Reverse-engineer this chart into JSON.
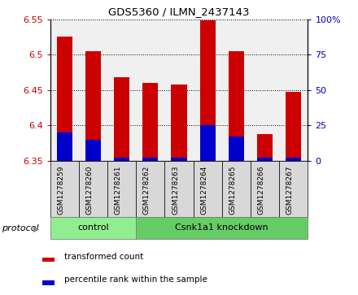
{
  "title": "GDS5360 / ILMN_2437143",
  "samples": [
    "GSM1278259",
    "GSM1278260",
    "GSM1278261",
    "GSM1278262",
    "GSM1278263",
    "GSM1278264",
    "GSM1278265",
    "GSM1278266",
    "GSM1278267"
  ],
  "transformed_counts": [
    6.525,
    6.505,
    6.468,
    6.46,
    6.458,
    6.548,
    6.505,
    6.388,
    6.447
  ],
  "percentile_ranks": [
    20,
    15,
    2,
    2,
    2,
    25,
    17,
    2,
    2
  ],
  "bar_base": 6.35,
  "ylim_left": [
    6.35,
    6.55
  ],
  "ylim_right": [
    0,
    100
  ],
  "yticks_left": [
    6.35,
    6.4,
    6.45,
    6.5,
    6.55
  ],
  "yticks_right": [
    0,
    25,
    50,
    75,
    100
  ],
  "ytick_labels_right": [
    "0",
    "25",
    "50",
    "75",
    "100%"
  ],
  "bar_color": "#cc0000",
  "percentile_color": "#0000cc",
  "protocol_groups": [
    {
      "label": "control",
      "start": 0,
      "end": 3,
      "color": "#90ee90"
    },
    {
      "label": "Csnk1a1 knockdown",
      "start": 3,
      "end": 9,
      "color": "#66cc66"
    }
  ],
  "xlabel_protocol": "protocol",
  "legend_items": [
    {
      "label": "transformed count",
      "color": "#cc0000"
    },
    {
      "label": "percentile rank within the sample",
      "color": "#0000cc"
    }
  ],
  "bar_width": 0.55,
  "tick_label_color_left": "#cc0000",
  "tick_label_color_right": "#0000cc",
  "background_color": "#ffffff",
  "plot_bg_color": "#f0f0f0",
  "grid_color": "#000000",
  "sample_box_color": "#d8d8d8"
}
